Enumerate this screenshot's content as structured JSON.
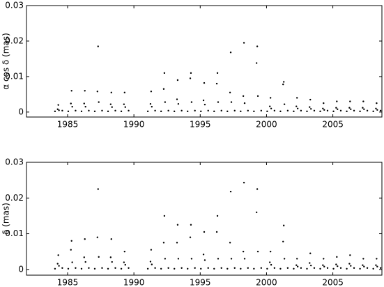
{
  "chart_data": [
    {
      "type": "scatter",
      "ylabel": "α cos δ (mas)",
      "color": "#000000",
      "xlim": [
        1981.9,
        2008.7
      ],
      "ylim": [
        -0.0014,
        0.03
      ],
      "xticks": [
        1985,
        1990,
        1995,
        2000,
        2005
      ],
      "yticks": [
        0,
        0.01,
        0.02,
        0.03
      ],
      "x": [
        1984.05,
        1984.25,
        1984.3,
        1984.35,
        1984.6,
        1985.05,
        1985.25,
        1985.3,
        1985.35,
        1985.6,
        1986.05,
        1986.25,
        1986.3,
        1986.35,
        1986.6,
        1987.05,
        1987.25,
        1987.3,
        1987.35,
        1987.6,
        1988.05,
        1988.25,
        1988.3,
        1988.35,
        1988.6,
        1989.05,
        1989.25,
        1989.3,
        1989.35,
        1989.6,
        1991.05,
        1991.25,
        1991.3,
        1991.35,
        1991.6,
        1992.05,
        1992.25,
        1992.3,
        1992.35,
        1992.6,
        1993.05,
        1993.25,
        1993.3,
        1993.35,
        1993.6,
        1994.05,
        1994.25,
        1994.3,
        1994.35,
        1994.6,
        1995.05,
        1995.25,
        1995.3,
        1995.35,
        1995.6,
        1996.05,
        1996.25,
        1996.3,
        1996.35,
        1996.6,
        1997.05,
        1997.25,
        1997.3,
        1997.35,
        1997.6,
        1998.05,
        1998.25,
        1998.3,
        1998.35,
        1998.6,
        1999.05,
        1999.25,
        1999.3,
        1999.35,
        1999.6,
        2000.05,
        2000.25,
        2000.3,
        2000.35,
        2000.6,
        2001.05,
        2001.25,
        2001.3,
        2001.35,
        2001.6,
        2002.05,
        2002.25,
        2002.3,
        2002.35,
        2002.6,
        2003.05,
        2003.25,
        2003.3,
        2003.35,
        2003.6,
        2004.05,
        2004.25,
        2004.3,
        2004.35,
        2004.6,
        2005.05,
        2005.25,
        2005.3,
        2005.35,
        2005.6,
        2006.05,
        2006.25,
        2006.3,
        2006.35,
        2006.6,
        2007.05,
        2007.25,
        2007.3,
        2007.35,
        2007.6,
        2008.05,
        2008.25,
        2008.3,
        2008.35,
        2008.6
      ],
      "values": [
        0.0002,
        0.0008,
        0.002,
        0.0005,
        0.0004,
        0.0002,
        0.0024,
        0.006,
        0.0015,
        0.0004,
        0.0002,
        0.0024,
        0.006,
        0.0015,
        0.0004,
        0.0002,
        0.0058,
        0.0185,
        0.0028,
        0.0004,
        0.0002,
        0.0022,
        0.0055,
        0.0014,
        0.0004,
        0.0002,
        0.0022,
        0.0055,
        0.0014,
        0.0004,
        0.0002,
        0.0023,
        0.0058,
        0.0015,
        0.0004,
        0.0002,
        0.0065,
        0.011,
        0.0028,
        0.0004,
        0.0002,
        0.0036,
        0.009,
        0.0023,
        0.0004,
        0.0002,
        0.0095,
        0.011,
        0.0028,
        0.0004,
        0.0002,
        0.0033,
        0.0082,
        0.0021,
        0.0004,
        0.0002,
        0.008,
        0.011,
        0.0028,
        0.0004,
        0.0002,
        0.0055,
        0.0168,
        0.0028,
        0.0004,
        0.0002,
        0.0045,
        0.0195,
        0.0025,
        0.0004,
        0.0002,
        0.0138,
        0.0185,
        0.0045,
        0.0004,
        0.0002,
        0.0016,
        0.004,
        0.001,
        0.0004,
        0.0002,
        0.0078,
        0.0085,
        0.0022,
        0.0004,
        0.0002,
        0.0016,
        0.004,
        0.001,
        0.0004,
        0.0002,
        0.0014,
        0.0035,
        0.0009,
        0.0004,
        0.0002,
        0.001,
        0.0025,
        0.0006,
        0.0004,
        0.0002,
        0.0012,
        0.003,
        0.0008,
        0.0004,
        0.0002,
        0.0012,
        0.003,
        0.0008,
        0.0004,
        0.0002,
        0.0012,
        0.003,
        0.0008,
        0.0004,
        0.0002,
        0.001,
        0.0025,
        0.0006,
        0.0004
      ]
    },
    {
      "type": "scatter",
      "ylabel": "δ (mas)",
      "color": "#000000",
      "xlim": [
        1981.9,
        2008.7
      ],
      "ylim": [
        -0.0016,
        0.03
      ],
      "xticks": [
        1985,
        1990,
        1995,
        2000,
        2005
      ],
      "yticks": [
        0,
        0.01,
        0.02,
        0.03
      ],
      "x": [
        1984.05,
        1984.25,
        1984.3,
        1984.35,
        1984.6,
        1985.05,
        1985.25,
        1985.3,
        1985.35,
        1985.6,
        1986.05,
        1986.25,
        1986.3,
        1986.35,
        1986.6,
        1987.05,
        1987.25,
        1987.3,
        1987.35,
        1987.6,
        1988.05,
        1988.25,
        1988.3,
        1988.35,
        1988.6,
        1989.05,
        1989.25,
        1989.3,
        1989.35,
        1989.6,
        1991.05,
        1991.25,
        1991.3,
        1991.35,
        1991.6,
        1992.05,
        1992.25,
        1992.3,
        1992.35,
        1992.6,
        1993.05,
        1993.25,
        1993.3,
        1993.35,
        1993.6,
        1994.05,
        1994.25,
        1994.3,
        1994.35,
        1994.6,
        1995.05,
        1995.25,
        1995.3,
        1995.35,
        1995.6,
        1996.05,
        1996.25,
        1996.3,
        1996.35,
        1996.6,
        1997.05,
        1997.25,
        1997.3,
        1997.35,
        1997.6,
        1998.05,
        1998.25,
        1998.3,
        1998.35,
        1998.6,
        1999.05,
        1999.25,
        1999.3,
        1999.35,
        1999.6,
        2000.05,
        2000.25,
        2000.3,
        2000.35,
        2000.6,
        2001.05,
        2001.25,
        2001.3,
        2001.35,
        2001.6,
        2002.05,
        2002.25,
        2002.3,
        2002.35,
        2002.6,
        2003.05,
        2003.25,
        2003.3,
        2003.35,
        2003.6,
        2004.05,
        2004.25,
        2004.3,
        2004.35,
        2004.6,
        2005.05,
        2005.25,
        2005.3,
        2005.35,
        2005.6,
        2006.05,
        2006.25,
        2006.3,
        2006.35,
        2006.6,
        2007.05,
        2007.25,
        2007.3,
        2007.35,
        2007.6,
        2008.05,
        2008.25,
        2008.3,
        2008.35,
        2008.6
      ],
      "values": [
        0.0002,
        0.0016,
        0.004,
        0.001,
        0.0004,
        0.0002,
        0.0055,
        0.008,
        0.002,
        0.0004,
        0.0002,
        0.0034,
        0.0085,
        0.0021,
        0.0004,
        0.0002,
        0.009,
        0.0225,
        0.0035,
        0.0004,
        0.0002,
        0.0034,
        0.0085,
        0.0021,
        0.0004,
        0.0002,
        0.002,
        0.005,
        0.0013,
        0.0004,
        0.0002,
        0.0022,
        0.0055,
        0.0014,
        0.0004,
        0.0002,
        0.0075,
        0.015,
        0.003,
        0.0004,
        0.0002,
        0.0075,
        0.0125,
        0.003,
        0.0004,
        0.0002,
        0.009,
        0.0125,
        0.003,
        0.0004,
        0.0002,
        0.0042,
        0.0105,
        0.0026,
        0.0004,
        0.0002,
        0.0105,
        0.015,
        0.003,
        0.0004,
        0.0002,
        0.0075,
        0.0218,
        0.003,
        0.0004,
        0.0002,
        0.005,
        0.0243,
        0.003,
        0.0004,
        0.0002,
        0.016,
        0.0225,
        0.005,
        0.0004,
        0.0002,
        0.002,
        0.005,
        0.0013,
        0.0004,
        0.0002,
        0.0078,
        0.0123,
        0.003,
        0.0004,
        0.0002,
        0.0012,
        0.003,
        0.0008,
        0.0004,
        0.0002,
        0.0018,
        0.0045,
        0.0011,
        0.0004,
        0.0002,
        0.0012,
        0.003,
        0.0008,
        0.0004,
        0.0002,
        0.0014,
        0.0035,
        0.0009,
        0.0004,
        0.0002,
        0.0016,
        0.004,
        0.001,
        0.0004,
        0.0002,
        0.0012,
        0.003,
        0.0008,
        0.0004,
        0.0002,
        0.0012,
        0.003,
        0.0008,
        0.0004
      ]
    }
  ]
}
